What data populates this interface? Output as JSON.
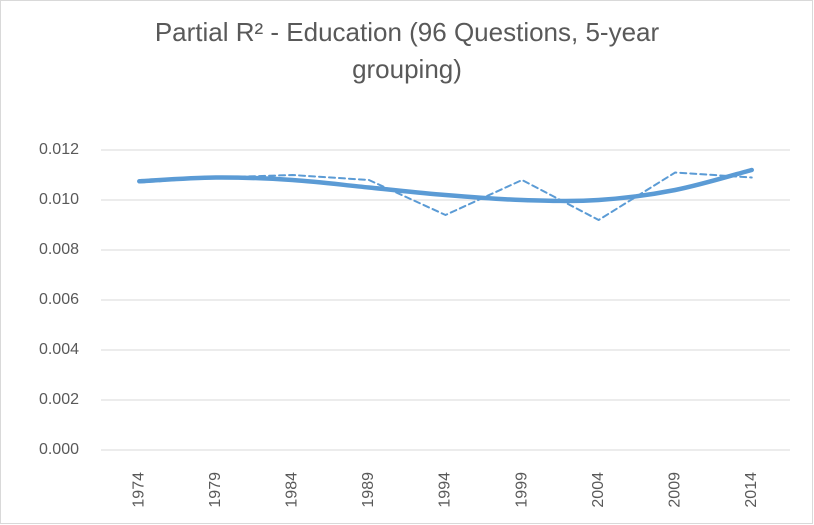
{
  "chart_data": {
    "type": "line",
    "title": "Partial R² - Education (96 Questions, 5-year grouping)",
    "categories": [
      "1974",
      "1979",
      "1984",
      "1989",
      "1994",
      "1999",
      "2004",
      "2009",
      "2014"
    ],
    "series": [
      {
        "color": "#5b9bd5",
        "style": "dashed",
        "values": [
          0.0107,
          0.0109,
          0.011,
          0.0108,
          0.0094,
          0.0108,
          0.0092,
          0.0111,
          0.0109
        ]
      },
      {
        "color": "#5b9bd5",
        "style": "smooth",
        "values": [
          0.01075,
          0.0109,
          0.0108,
          0.0105,
          0.0102,
          0.01,
          0.01,
          0.0104,
          0.0112
        ]
      }
    ],
    "ylim": [
      0,
      0.012
    ],
    "yticks": [
      {
        "value": 0,
        "label": "0.000"
      },
      {
        "value": 0.002,
        "label": "0.002"
      },
      {
        "value": 0.004,
        "label": "0.004"
      },
      {
        "value": 0.006,
        "label": "0.006"
      },
      {
        "value": 0.008,
        "label": "0.008"
      },
      {
        "value": 0.01,
        "label": "0.010"
      },
      {
        "value": 0.012,
        "label": "0.012"
      }
    ],
    "grid": true
  }
}
